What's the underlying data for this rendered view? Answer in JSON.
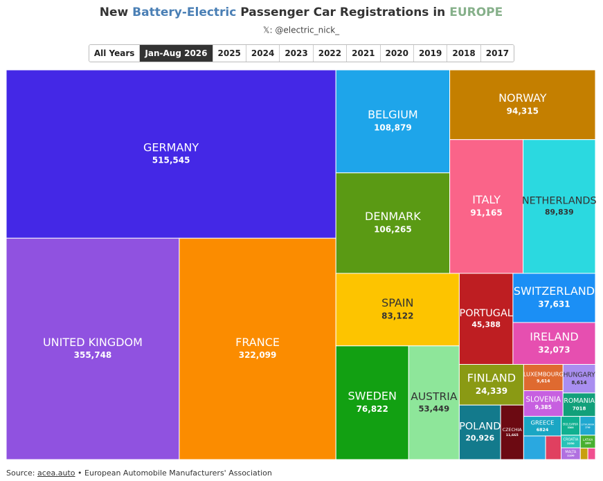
{
  "chart_data": {
    "type": "treemap",
    "title_parts": [
      {
        "text": "New ",
        "color": "#333333"
      },
      {
        "text": "Battery-Electric",
        "color": "#4a7fb5"
      },
      {
        "text": " Passenger Car Registrations in ",
        "color": "#333333"
      },
      {
        "text": "EUROPE",
        "color": "#86b08a"
      }
    ],
    "subtitle": "𝕏: @electric_nick_",
    "tabs": [
      "All Years",
      "Jan-Aug 2026",
      "2025",
      "2024",
      "2023",
      "2022",
      "2021",
      "2020",
      "2019",
      "2018",
      "2017"
    ],
    "selected_tab": 1,
    "categories": [
      "GERMANY",
      "UNITED KINGDOM",
      "FRANCE",
      "BELGIUM",
      "DENMARK",
      "NORWAY",
      "ITALY",
      "NETHERLANDS",
      "SPAIN",
      "SWEDEN",
      "AUSTRIA",
      "PORTUGAL",
      "SWITZERLAND",
      "IRELAND",
      "FINLAND",
      "POLAND",
      "CZECHIA",
      "LUXEMBOURG",
      "SLOVENIA",
      "HUNGARY",
      "ROMANIA",
      "GREECE",
      null,
      null,
      "BULGARIA",
      "LITHUANIA",
      "CROATIA",
      "MALTA",
      "LATVIA",
      null,
      null
    ],
    "values": [
      515545,
      355748,
      322099,
      108879,
      106265,
      94315,
      91165,
      89839,
      83122,
      76822,
      53449,
      45388,
      37631,
      32073,
      24339,
      20926,
      11665,
      9614,
      9385,
      8614,
      7018,
      6824,
      4800,
      3400,
      3300,
      2700,
      2250,
      2100,
      1800,
      800,
      800
    ],
    "value_labels": [
      "515,545",
      "355,748",
      "322,099",
      "108,879",
      "106,265",
      "94,315",
      "91,165",
      "89,839",
      "83,122",
      "76,822",
      "53,449",
      "45,388",
      "37,631",
      "32,073",
      "24,339",
      "20,926",
      "11,665",
      "9,614",
      "9,385",
      "8,614",
      "7018",
      "6824",
      null,
      null,
      "3300",
      "2700",
      "2250",
      "2100",
      "1800",
      null,
      null
    ],
    "colors": [
      "#4428e6",
      "#9052e0",
      "#fb8c00",
      "#1ea5ea",
      "#5a9a14",
      "#c47f00",
      "#fa6489",
      "#2bd9e0",
      "#fdc400",
      "#12a012",
      "#8ee69a",
      "#be1e22",
      "#1b8ff5",
      "#e64fb0",
      "#8a9a14",
      "#137a8c",
      "#6c0a12",
      "#df6a30",
      "#c760e0",
      "#a98ef0",
      "#12a07a",
      "#1aa6c4",
      "#2aa8e0",
      "#e04060",
      "#10b090",
      "#20a8d0",
      "#28c4b8",
      "#b070e0",
      "#48b030",
      "#c8a010",
      "#f05090"
    ],
    "source_parts": [
      "Source: ",
      "acea.auto",
      " • European Automobile Manufacturers' Association"
    ]
  }
}
